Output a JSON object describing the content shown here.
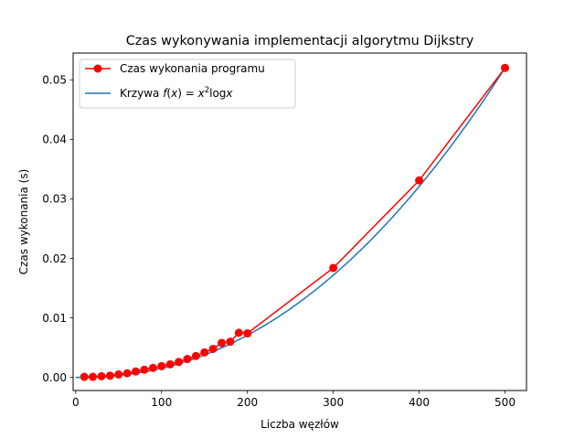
{
  "chart_data": {
    "type": "line",
    "title": "Czas wykonywania implementacji algorytmu Dijkstry",
    "xlabel": "Liczba węzłów",
    "ylabel": "Czas wykonania (s)",
    "xlim": [
      -3,
      525
    ],
    "ylim": [
      -0.0022,
      0.0545
    ],
    "xticks": [
      0,
      100,
      200,
      300,
      400,
      500
    ],
    "xtick_labels": [
      "0",
      "100",
      "200",
      "300",
      "400",
      "500"
    ],
    "yticks": [
      0,
      0.01,
      0.02,
      0.03,
      0.04,
      0.05
    ],
    "ytick_labels": [
      "0.00",
      "0.01",
      "0.02",
      "0.03",
      "0.04",
      "0.05"
    ],
    "grid": false,
    "legend_position": "top-left",
    "series": [
      {
        "name": "Czas wykonania programu",
        "style": "line-with-markers",
        "color": "#ff0000",
        "x": [
          10,
          20,
          30,
          40,
          50,
          60,
          70,
          80,
          90,
          100,
          110,
          120,
          130,
          140,
          150,
          160,
          170,
          180,
          190,
          200,
          300,
          400,
          500
        ],
        "y": [
          0.0001,
          0.0001,
          0.0002,
          0.0003,
          0.0005,
          0.0007,
          0.001,
          0.0013,
          0.0016,
          0.0019,
          0.0022,
          0.0026,
          0.0031,
          0.0036,
          0.0042,
          0.0048,
          0.0058,
          0.006,
          0.0075,
          0.0074,
          0.0184,
          0.0331,
          0.052
        ]
      },
      {
        "name": "Krzywa f(x) = x²logx",
        "legend_label": {
          "prefix": "Krzywa ",
          "f": "f",
          "open": "(",
          "x1": "x",
          "mid": ") = ",
          "x2": "x",
          "sup": "2",
          "log": "log",
          "x3": "x"
        },
        "style": "line",
        "color": "#1f77b4",
        "formula": "x^2*log(x)",
        "x_range": [
          0,
          500
        ]
      }
    ]
  }
}
